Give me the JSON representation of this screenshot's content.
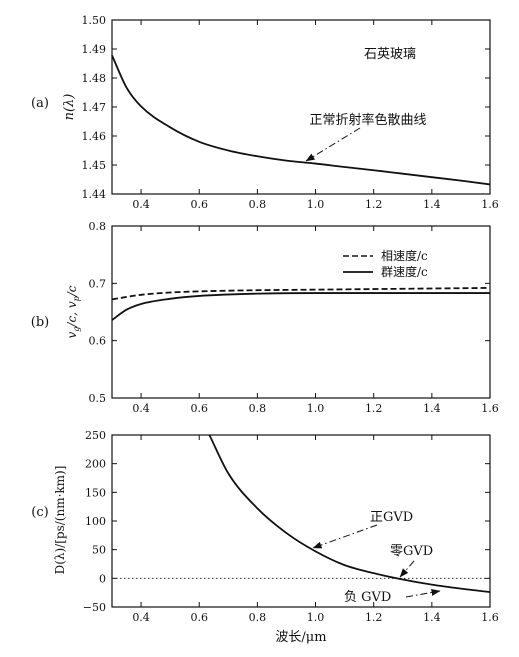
{
  "chart_data": [
    {
      "panel_label": "(a)",
      "type": "line",
      "title": "石英玻璃",
      "xlabel": "",
      "ylabel": "n(λ)",
      "xlim": [
        0.3,
        1.6
      ],
      "ylim": [
        1.44,
        1.5
      ],
      "xticks": [
        0.4,
        0.6,
        0.8,
        1.0,
        1.2,
        1.4,
        1.6
      ],
      "yticks": [
        1.44,
        1.45,
        1.46,
        1.47,
        1.48,
        1.49,
        1.5
      ],
      "x_tick_labels": [
        "0.4",
        "0.6",
        "0.8",
        "1.0",
        "1.2",
        "1.4",
        "1.6"
      ],
      "y_tick_labels": [
        "1.44",
        "1.45",
        "1.46",
        "1.47",
        "1.48",
        "1.49",
        "1.50"
      ],
      "series": [
        {
          "style": "solid",
          "x": [
            0.3,
            0.35,
            0.4,
            0.5,
            0.6,
            0.7,
            0.8,
            0.9,
            1.0,
            1.1,
            1.2,
            1.3,
            1.4,
            1.5,
            1.6
          ],
          "y": [
            1.4878,
            1.4767,
            1.4702,
            1.463,
            1.458,
            1.455,
            1.453,
            1.4515,
            1.4505,
            1.4493,
            1.4482,
            1.447,
            1.4458,
            1.4446,
            1.4433
          ]
        }
      ],
      "annotations": [
        {
          "text": "正常折射率色散曲线",
          "x": 0.97,
          "y": 1.4505
        }
      ]
    },
    {
      "panel_label": "(b)",
      "type": "line",
      "xlabel": "",
      "ylabel": "v_g/c, v_p/c",
      "xlim": [
        0.3,
        1.6
      ],
      "ylim": [
        0.5,
        0.8
      ],
      "xticks": [
        0.4,
        0.6,
        0.8,
        1.0,
        1.2,
        1.4,
        1.6
      ],
      "yticks": [
        0.5,
        0.6,
        0.7,
        0.8
      ],
      "x_tick_labels": [
        "0.4",
        "0.6",
        "0.8",
        "1.0",
        "1.2",
        "1.4",
        "1.6"
      ],
      "y_tick_labels": [
        "0.5",
        "0.6",
        "0.7",
        "0.8"
      ],
      "legend_position": "top-right",
      "series": [
        {
          "name": "相速度/c",
          "style": "dashed",
          "x": [
            0.3,
            0.4,
            0.5,
            0.6,
            0.8,
            1.0,
            1.2,
            1.4,
            1.6
          ],
          "y": [
            0.672,
            0.68,
            0.684,
            0.686,
            0.688,
            0.689,
            0.69,
            0.691,
            0.692
          ]
        },
        {
          "name": "群速度/c",
          "style": "solid",
          "x": [
            0.3,
            0.35,
            0.4,
            0.5,
            0.6,
            0.8,
            1.0,
            1.2,
            1.4,
            1.6
          ],
          "y": [
            0.636,
            0.654,
            0.664,
            0.673,
            0.678,
            0.682,
            0.683,
            0.683,
            0.683,
            0.683
          ]
        }
      ]
    },
    {
      "panel_label": "(c)",
      "type": "line",
      "xlabel": "波长/μm",
      "ylabel": "D(λ)/[ps/(nm·km)]",
      "xlim": [
        0.3,
        1.6
      ],
      "ylim": [
        -50,
        250
      ],
      "xticks": [
        0.4,
        0.6,
        0.8,
        1.0,
        1.2,
        1.4,
        1.6
      ],
      "yticks": [
        -50,
        0,
        50,
        100,
        150,
        200,
        250
      ],
      "x_tick_labels": [
        "0.4",
        "0.6",
        "0.8",
        "1.0",
        "1.2",
        "1.4",
        "1.6"
      ],
      "y_tick_labels": [
        "−50",
        "0",
        "50",
        "100",
        "150",
        "200",
        "250"
      ],
      "series": [
        {
          "style": "solid",
          "x": [
            0.635,
            0.7,
            0.8,
            0.9,
            1.0,
            1.1,
            1.2,
            1.3,
            1.4,
            1.5,
            1.6
          ],
          "y": [
            250,
            183,
            122,
            79,
            47,
            23,
            9,
            -2,
            -11,
            -18,
            -24
          ]
        }
      ],
      "reference_lines": [
        {
          "y": 0,
          "style": "dotted"
        }
      ],
      "annotations": [
        {
          "text": "正GVD",
          "x": 1.0,
          "y": 47
        },
        {
          "text": "零GVD",
          "x": 1.285,
          "y": 0
        },
        {
          "text": "负 GVD",
          "x": 1.45,
          "y": -14
        }
      ]
    }
  ]
}
